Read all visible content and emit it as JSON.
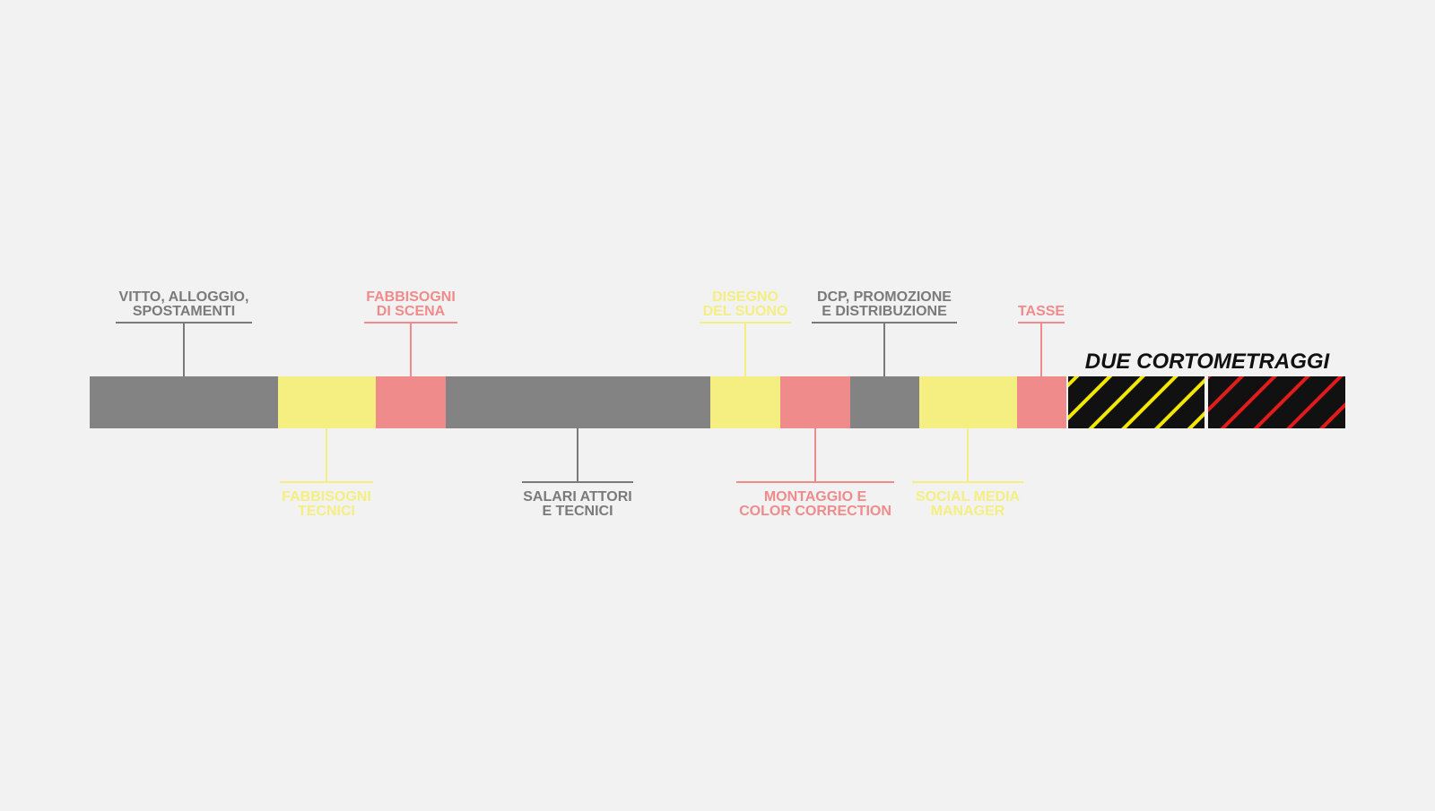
{
  "diagram": {
    "title": "DUE CORTOMETRAGGI",
    "colors": {
      "background": "#f2f2f2",
      "gray": "#838383",
      "gray_text": "#7a7a7a",
      "yellow": "#f5ee80",
      "pink": "#f08b8b",
      "black": "#111111",
      "hatch_yellow": "#f4e800",
      "hatch_red": "#e21b1b"
    },
    "segments": [
      {
        "id": "vitto",
        "color": "gray"
      },
      {
        "id": "fabb-tecnici",
        "color": "yellow"
      },
      {
        "id": "fabb-scena",
        "color": "pink"
      },
      {
        "id": "salari",
        "color": "gray"
      },
      {
        "id": "suono",
        "color": "yellow"
      },
      {
        "id": "montaggio",
        "color": "pink"
      },
      {
        "id": "dcp",
        "color": "gray"
      },
      {
        "id": "social",
        "color": "yellow"
      },
      {
        "id": "tasse",
        "color": "pink"
      }
    ],
    "labels": [
      {
        "id": "vitto",
        "position": "top",
        "color": "gray_text",
        "lines": [
          "VITTO, ALLOGGIO,",
          "SPOSTAMENTI"
        ]
      },
      {
        "id": "fabb-tecnici",
        "position": "bottom",
        "color": "yellow",
        "lines": [
          "FABBISOGNI",
          "TECNICI"
        ]
      },
      {
        "id": "fabb-scena",
        "position": "top",
        "color": "pink",
        "lines": [
          "FABBISOGNI",
          "DI SCENA"
        ]
      },
      {
        "id": "salari",
        "position": "bottom",
        "color": "gray_text",
        "lines": [
          "SALARI ATTORI",
          "E TECNICI"
        ]
      },
      {
        "id": "suono",
        "position": "top",
        "color": "yellow",
        "lines": [
          "DISEGNO",
          "DEL SUONO"
        ]
      },
      {
        "id": "montaggio",
        "position": "bottom",
        "color": "pink",
        "lines": [
          "MONTAGGIO E",
          "COLOR CORRECTION"
        ]
      },
      {
        "id": "dcp",
        "position": "top",
        "color": "gray_text",
        "lines": [
          "DCP, PROMOZIONE",
          "E DISTRIBUZIONE"
        ]
      },
      {
        "id": "social",
        "position": "bottom",
        "color": "yellow",
        "lines": [
          "SOCIAL MEDIA",
          "MANAGER"
        ]
      },
      {
        "id": "tasse",
        "position": "top",
        "color": "pink",
        "lines": [
          "TASSE"
        ]
      }
    ],
    "hatched_blocks": [
      {
        "id": "corto-1",
        "stripe": "hatch_yellow"
      },
      {
        "id": "corto-2",
        "stripe": "hatch_red"
      }
    ]
  }
}
